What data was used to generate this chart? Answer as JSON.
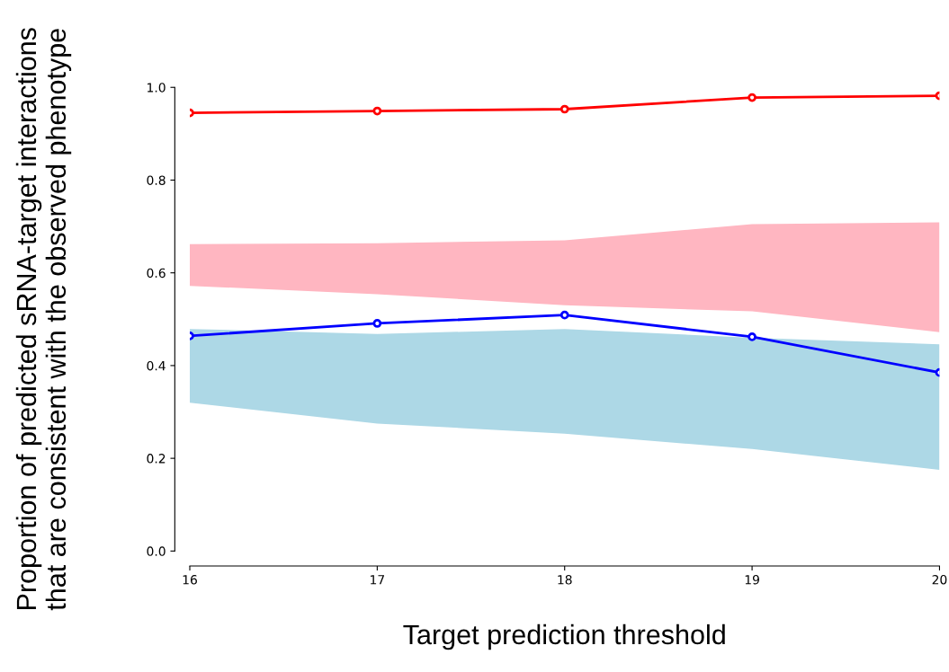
{
  "chart_data": {
    "type": "line",
    "xlabel": "Target prediction threshold",
    "ylabel": "Proportion of predicted sRNA-target interactions\nthat are consistent with the observed phenotype",
    "x": [
      16,
      17,
      18,
      19,
      20
    ],
    "series": [
      {
        "color": "#ffb6c1",
        "values": [
          null,
          null,
          null,
          null,
          null
        ],
        "lower": [
          0.572,
          0.554,
          0.53,
          0.517,
          0.472
        ],
        "upper": [
          0.662,
          0.664,
          0.67,
          0.705,
          0.709
        ]
      },
      {
        "color": "#add8e6",
        "values": [
          null,
          null,
          null,
          null,
          null
        ],
        "lower": [
          0.32,
          0.275,
          0.253,
          0.22,
          0.175
        ],
        "upper": [
          0.479,
          0.468,
          0.479,
          0.46,
          0.446
        ]
      },
      {
        "marker": "circle",
        "color": "#ff0000",
        "values": [
          0.945,
          0.949,
          0.953,
          0.978,
          0.982
        ]
      },
      {
        "marker": "circle",
        "color": "#0000ff",
        "values": [
          0.464,
          0.491,
          0.509,
          0.462,
          0.385
        ]
      }
    ],
    "xlim": [
      16,
      20
    ],
    "ylim": [
      0,
      1
    ],
    "xticks": [
      16,
      17,
      18,
      19,
      20
    ],
    "yticks": [
      {
        "value": 0,
        "label": "0.0"
      },
      {
        "value": 0.2,
        "label": "0.2"
      },
      {
        "value": 0.4,
        "label": "0.4"
      },
      {
        "value": 0.6,
        "label": "0.6"
      },
      {
        "value": 0.8,
        "label": "0.8"
      },
      {
        "value": 1,
        "label": "1.0"
      }
    ],
    "line_style": "solid",
    "grid": false,
    "legend": false
  }
}
